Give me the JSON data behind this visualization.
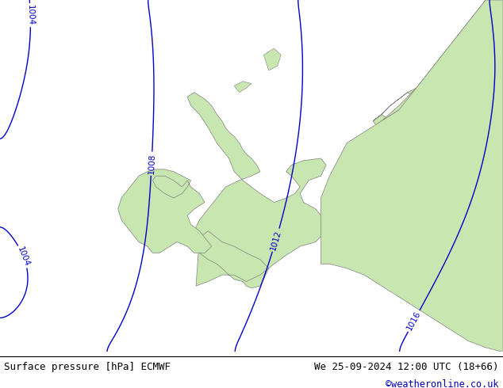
{
  "title_left": "Surface pressure [hPa] ECMWF",
  "title_right": "We 25-09-2024 12:00 UTC (18+66)",
  "watermark": "©weatheronline.co.uk",
  "background_ocean": "#dcdcdc",
  "background_land": "#c8e6b0",
  "coastline_color": "#808080",
  "border_color": "#808080",
  "isobar_color": "#0000cc",
  "isobar_black_color": "#000000",
  "isobar_linewidth": 1.0,
  "label_fontsize": 7.5,
  "title_fontsize": 9,
  "watermark_color": "#0000bb",
  "extent_lon_min": -17,
  "extent_lon_max": 12,
  "extent_lat_min": 47,
  "extent_lat_max": 63,
  "fig_width": 6.34,
  "fig_height": 4.9,
  "dpi": 100,
  "bottom_bar_height": 0.093
}
